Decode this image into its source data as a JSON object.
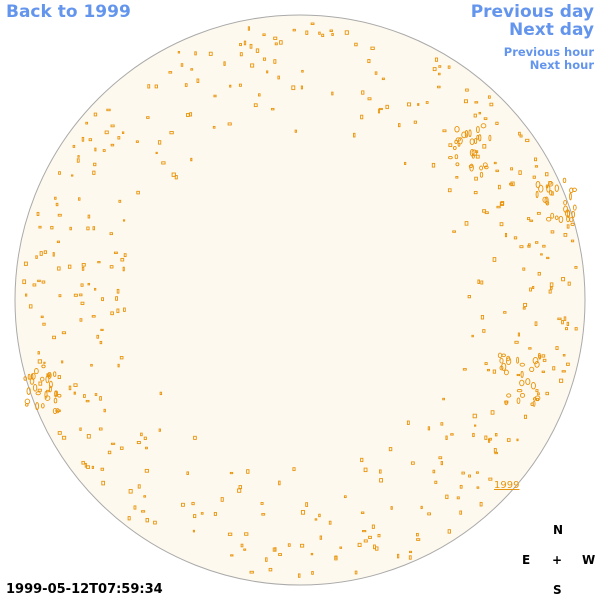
{
  "nav": {
    "back_label": "Back to 1999",
    "previous_day_label": "Previous day",
    "next_day_label": "Next day",
    "previous_hour_label": "Previous hour",
    "next_hour_label": "Next hour"
  },
  "map": {
    "region_label": "1999",
    "timestamp": "1999-05-12T07:59:34"
  },
  "compass": {
    "north": "N",
    "east": "E",
    "center": "+",
    "west": "W",
    "south": "S"
  },
  "colors": {
    "disk_fill": "#fef9ee",
    "disk_edge": "#aaaaaa",
    "feature": "#e8940c",
    "link": "#6495ed"
  }
}
